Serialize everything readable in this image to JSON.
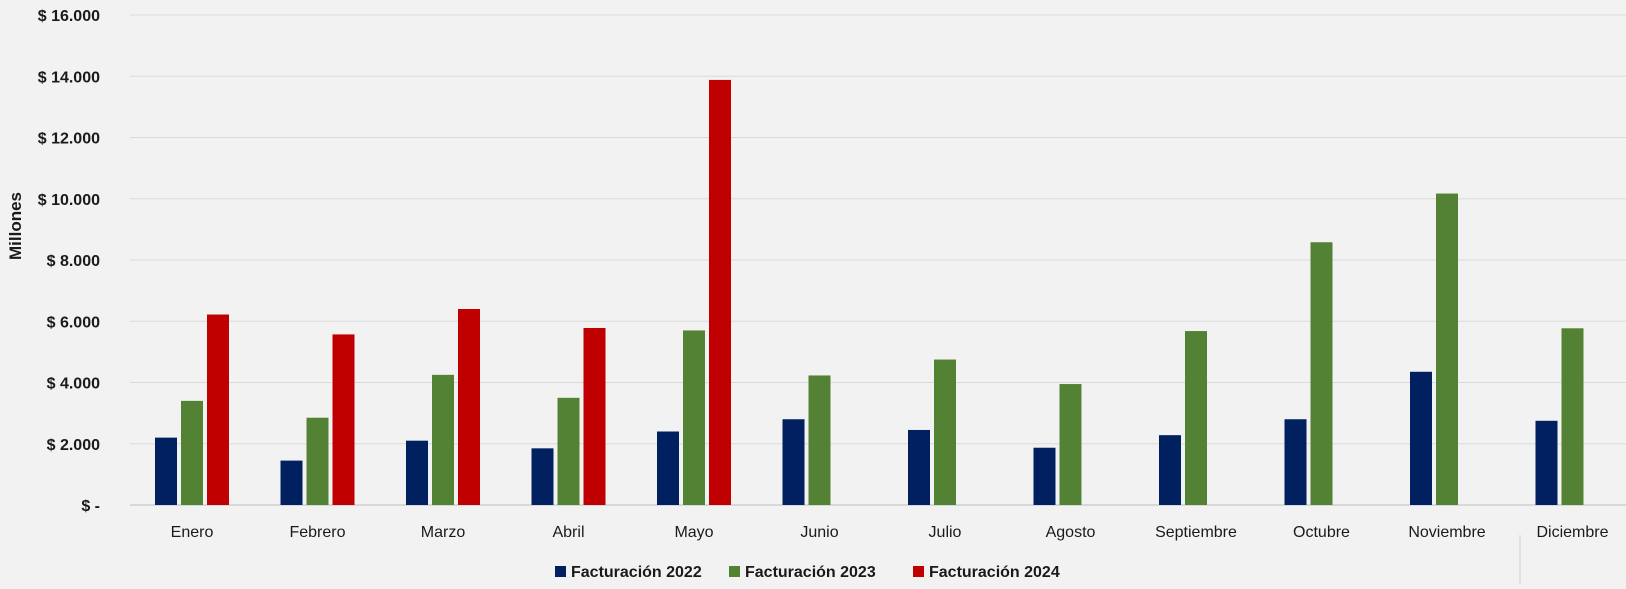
{
  "chart_data": {
    "type": "bar",
    "title": "",
    "xlabel": "",
    "ylabel": "Millones",
    "ylim": [
      0,
      16000
    ],
    "yticks": [
      0,
      2000,
      4000,
      6000,
      8000,
      10000,
      12000,
      14000,
      16000
    ],
    "ytick_labels": [
      "$ -",
      "$ 2.000",
      "$ 4.000",
      "$ 6.000",
      "$ 8.000",
      "$ 10.000",
      "$ 12.000",
      "$ 14.000",
      "$ 16.000"
    ],
    "grid": true,
    "legend_position": "bottom",
    "categories": [
      "Enero",
      "Febrero",
      "Marzo",
      "Abril",
      "Mayo",
      "Junio",
      "Julio",
      "Agosto",
      "Septiembre",
      "Octubre",
      "Noviembre",
      "Diciembre"
    ],
    "series": [
      {
        "name": "Facturación 2022",
        "color": "#002060",
        "values": [
          2200,
          1450,
          2100,
          1850,
          2400,
          2800,
          2450,
          1870,
          2280,
          2800,
          4350,
          2750
        ]
      },
      {
        "name": "Facturación 2023",
        "color": "#548235",
        "values": [
          3400,
          2850,
          4250,
          3500,
          5700,
          4230,
          4750,
          3950,
          5680,
          8580,
          10170,
          5770
        ]
      },
      {
        "name": "Facturación 2024",
        "color": "#c00000",
        "values": [
          6220,
          5570,
          6400,
          5780,
          13880,
          null,
          null,
          null,
          null,
          null,
          null,
          null
        ]
      }
    ]
  }
}
